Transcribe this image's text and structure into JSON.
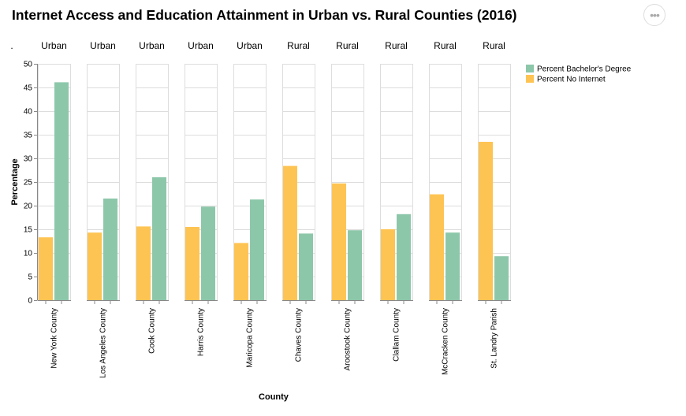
{
  "title": "Internet Access and Education Attainment in Urban vs. Rural Counties (2016)",
  "menu": {
    "glyph": "•••"
  },
  "chart_data": {
    "type": "bar",
    "title": "Internet Access and Education Attainment in Urban vs. Rural Counties (2016)",
    "facet_header_label": ".",
    "xlabel": "County",
    "ylabel": "Percentage",
    "ylim": [
      0,
      50
    ],
    "yticks": [
      0,
      5,
      10,
      15,
      20,
      25,
      30,
      35,
      40,
      45,
      50
    ],
    "grid": true,
    "legend_position": "right",
    "series": [
      {
        "name": "Percent Bachelor's Degree",
        "color": "#8dc7aa"
      },
      {
        "name": "Percent No Internet",
        "color": "#fec453"
      }
    ],
    "facets": [
      {
        "group": "Urban",
        "county": "New York County",
        "no_internet": 13.3,
        "bachelors": 46.1
      },
      {
        "group": "Urban",
        "county": "Los Angeles County",
        "no_internet": 14.3,
        "bachelors": 21.5
      },
      {
        "group": "Urban",
        "county": "Cook County",
        "no_internet": 15.6,
        "bachelors": 26.0
      },
      {
        "group": "Urban",
        "county": "Harris County",
        "no_internet": 15.5,
        "bachelors": 19.8
      },
      {
        "group": "Urban",
        "county": "Maricopa County",
        "no_internet": 12.1,
        "bachelors": 21.3
      },
      {
        "group": "Rural",
        "county": "Chaves County",
        "no_internet": 28.4,
        "bachelors": 14.1
      },
      {
        "group": "Rural",
        "county": "Aroostook County",
        "no_internet": 24.7,
        "bachelors": 14.8
      },
      {
        "group": "Rural",
        "county": "Clallam County",
        "no_internet": 15.0,
        "bachelors": 18.2
      },
      {
        "group": "Rural",
        "county": "McCracken County",
        "no_internet": 22.4,
        "bachelors": 14.3
      },
      {
        "group": "Rural",
        "county": "St. Landry Parish",
        "no_internet": 33.5,
        "bachelors": 9.3
      }
    ]
  }
}
